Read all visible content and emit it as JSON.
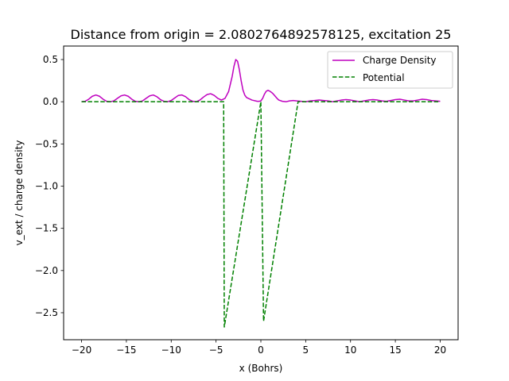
{
  "chart_data": {
    "type": "line",
    "title": "Distance from origin = 2.0802764892578125, excitation 25",
    "xlabel": "x (Bohrs)",
    "ylabel": "v_ext / charge density",
    "xlim": [
      -22,
      22
    ],
    "ylim": [
      -2.82,
      0.66
    ],
    "xticks": [
      -20,
      -15,
      -10,
      -5,
      0,
      5,
      10,
      15,
      20
    ],
    "xtick_labels": [
      "−20",
      "−15",
      "−10",
      "−5",
      "0",
      "5",
      "10",
      "15",
      "20"
    ],
    "yticks": [
      0.5,
      0.0,
      -0.5,
      -1.0,
      -1.5,
      -2.0,
      -2.5
    ],
    "ytick_labels": [
      "0.5",
      "0.0",
      "−0.5",
      "−1.0",
      "−1.5",
      "−2.0",
      "−2.5"
    ],
    "grid": false,
    "legend_position": "top-right",
    "series": [
      {
        "name": "Charge Density",
        "color": "#bf00bf",
        "style": "solid",
        "x": [
          -20,
          -19.6,
          -19.2,
          -18.8,
          -18.4,
          -18.0,
          -17.6,
          -17.2,
          -16.8,
          -16.4,
          -16.0,
          -15.6,
          -15.2,
          -14.8,
          -14.4,
          -14.0,
          -13.6,
          -13.2,
          -12.8,
          -12.4,
          -12.0,
          -11.6,
          -11.2,
          -10.8,
          -10.4,
          -10.0,
          -9.6,
          -9.2,
          -8.8,
          -8.4,
          -8.0,
          -7.6,
          -7.2,
          -6.8,
          -6.4,
          -6.0,
          -5.6,
          -5.2,
          -4.8,
          -4.4,
          -4.0,
          -3.6,
          -3.2,
          -3.0,
          -2.8,
          -2.6,
          -2.4,
          -2.2,
          -2.0,
          -1.8,
          -1.6,
          -1.4,
          -1.2,
          -1.0,
          -0.8,
          -0.6,
          -0.4,
          -0.2,
          0.0,
          0.2,
          0.4,
          0.6,
          0.8,
          1.0,
          1.2,
          1.4,
          1.6,
          1.8,
          2.0,
          2.4,
          2.8,
          3.2,
          3.6,
          4.0,
          4.5,
          5.0,
          5.5,
          6.0,
          6.5,
          7.0,
          7.5,
          8.0,
          8.5,
          9.0,
          9.5,
          10.0,
          10.5,
          11.0,
          11.5,
          12.0,
          12.5,
          13.0,
          13.5,
          14.0,
          14.5,
          15.0,
          15.5,
          16.0,
          16.5,
          17.0,
          17.5,
          18.0,
          18.5,
          19.0,
          19.5,
          20.0
        ],
        "y": [
          0.0,
          0.005,
          0.03,
          0.065,
          0.08,
          0.065,
          0.03,
          0.005,
          0.0,
          0.01,
          0.04,
          0.07,
          0.08,
          0.065,
          0.03,
          0.005,
          0.0,
          0.01,
          0.04,
          0.07,
          0.08,
          0.06,
          0.025,
          0.005,
          0.0,
          0.015,
          0.045,
          0.075,
          0.08,
          0.06,
          0.025,
          0.005,
          0.0,
          0.02,
          0.055,
          0.085,
          0.095,
          0.075,
          0.04,
          0.02,
          0.04,
          0.12,
          0.3,
          0.42,
          0.5,
          0.48,
          0.38,
          0.25,
          0.14,
          0.08,
          0.05,
          0.04,
          0.03,
          0.02,
          0.015,
          0.01,
          0.005,
          0.005,
          0.01,
          0.04,
          0.09,
          0.125,
          0.135,
          0.125,
          0.11,
          0.09,
          0.065,
          0.04,
          0.02,
          0.005,
          0.0,
          0.01,
          0.015,
          0.01,
          0.005,
          0.0,
          0.01,
          0.015,
          0.02,
          0.015,
          0.01,
          0.0,
          0.01,
          0.02,
          0.025,
          0.02,
          0.01,
          0.0,
          0.01,
          0.02,
          0.025,
          0.02,
          0.01,
          0.005,
          0.015,
          0.025,
          0.03,
          0.02,
          0.01,
          0.01,
          0.02,
          0.03,
          0.025,
          0.015,
          0.01,
          0.005
        ]
      },
      {
        "name": "Potential",
        "color": "#008000",
        "style": "dashed",
        "x": [
          -20,
          -4.15,
          -4.08,
          0.0,
          0.3,
          4.15,
          20
        ],
        "y": [
          0.0,
          0.0,
          -2.67,
          0.0,
          -2.6,
          0.0,
          0.0
        ]
      }
    ]
  }
}
